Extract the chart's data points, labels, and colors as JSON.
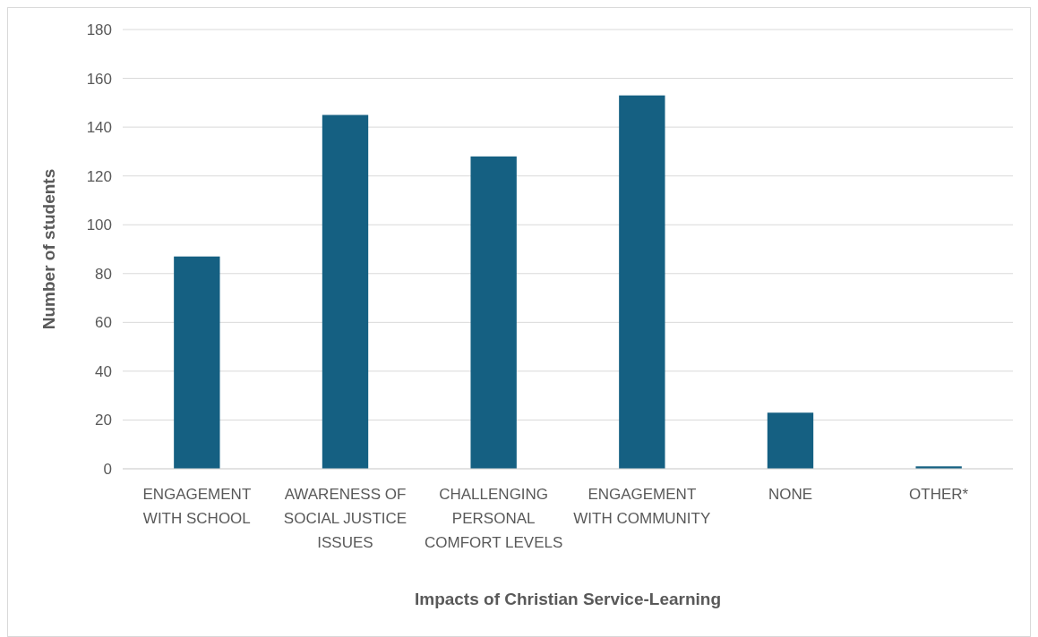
{
  "chart_data": {
    "type": "bar",
    "xlabel": "Impacts of Christian Service-Learning",
    "ylabel": "Number of students",
    "categories": [
      "ENGAGEMENT WITH SCHOOL",
      "AWARENESS OF SOCIAL JUSTICE ISSUES",
      "CHALLENGING PERSONAL COMFORT LEVELS",
      "ENGAGEMENT WITH COMMUNITY",
      "NONE",
      "OTHER*"
    ],
    "values": [
      87,
      145,
      128,
      153,
      23,
      1
    ],
    "color": "#156082",
    "ylim": [
      0,
      180
    ],
    "yticks": [
      0,
      20,
      40,
      60,
      80,
      100,
      120,
      140,
      160,
      180
    ],
    "grid": "y"
  }
}
